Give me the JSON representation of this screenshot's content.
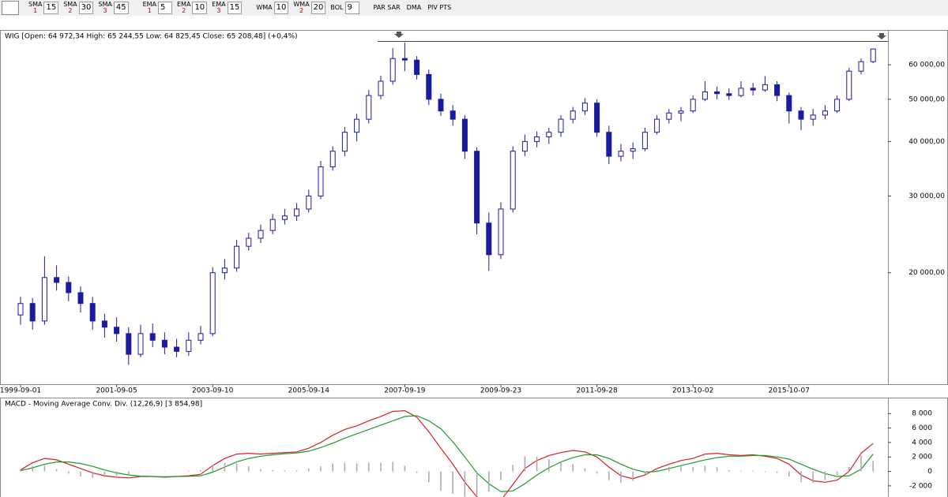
{
  "toolbar": [
    {
      "label": "SMA",
      "sub": "1",
      "value": "15"
    },
    {
      "label": "SMA",
      "sub": "2",
      "value": "30"
    },
    {
      "label": "SMA",
      "sub": "3",
      "value": "45"
    },
    {
      "label": "EMA",
      "sub": "1",
      "value": "5"
    },
    {
      "label": "EMA",
      "sub": "2",
      "value": "10"
    },
    {
      "label": "EMA",
      "sub": "3",
      "value": "15"
    },
    {
      "label": "WMA",
      "value": "10"
    },
    {
      "label": "WMA",
      "sub": "2",
      "value": "20"
    },
    {
      "label": "BOL",
      "value": "9"
    },
    {
      "label": "PAR SAR"
    },
    {
      "label": "DMA"
    },
    {
      "label": "PIV PTS"
    }
  ],
  "chart_data": [
    {
      "type": "candlestick",
      "title": "WIG [Open: 64 972,34  High: 65 244,55  Low: 64 825,45  Close: 65 208,48] (+0,4%)",
      "log_scale": true,
      "grid": false,
      "up_color": "#ffffff",
      "down_color": "#1a1aa0",
      "edge_color": "#1a1aa0",
      "categories": [
        "1999-09-01",
        null,
        null,
        null,
        null,
        null,
        null,
        null,
        "2001-09-05",
        null,
        null,
        null,
        null,
        null,
        null,
        null,
        "2003-09-10",
        null,
        null,
        null,
        null,
        null,
        null,
        null,
        "2005-09-14",
        null,
        null,
        null,
        null,
        null,
        null,
        null,
        "2007-09-19",
        null,
        null,
        null,
        null,
        null,
        null,
        null,
        "2009-09-23",
        null,
        null,
        null,
        null,
        null,
        null,
        null,
        "2011-09-28",
        null,
        null,
        null,
        null,
        null,
        null,
        null,
        "2013-10-02",
        null,
        null,
        null,
        null,
        null,
        null,
        null,
        "2015-10-07",
        null,
        null,
        null,
        null,
        null,
        null,
        null
      ],
      "open": [
        16000,
        17000,
        15500,
        19500,
        19000,
        18000,
        17000,
        15500,
        15000,
        14500,
        13000,
        14500,
        14000,
        13500,
        13200,
        14000,
        14500,
        20000,
        20500,
        23000,
        24000,
        25000,
        26500,
        27000,
        28000,
        30000,
        35000,
        38000,
        42000,
        45000,
        51000,
        55000,
        62000,
        61500,
        57000,
        50000,
        47000,
        45000,
        38000,
        26000,
        22000,
        28000,
        38000,
        40000,
        41000,
        42000,
        45000,
        47000,
        49000,
        42000,
        37000,
        38000,
        38500,
        42000,
        45000,
        46500,
        47000,
        50000,
        52000,
        51500,
        51000,
        53000,
        52500,
        54000,
        51000,
        47000,
        45000,
        46000,
        47000,
        50000,
        58000,
        61000
      ],
      "high": [
        17600,
        17500,
        21800,
        20800,
        19600,
        18600,
        17600,
        16100,
        15800,
        15000,
        15200,
        15300,
        14600,
        14100,
        14600,
        15100,
        20600,
        21500,
        23800,
        24700,
        25800,
        27300,
        28000,
        28900,
        31000,
        36100,
        39000,
        43200,
        46300,
        52500,
        56600,
        65500,
        67500,
        62800,
        58500,
        51500,
        48500,
        46000,
        38800,
        27500,
        29000,
        39000,
        41500,
        42200,
        43000,
        46000,
        48000,
        50300,
        50000,
        43500,
        39500,
        39800,
        43000,
        46000,
        47500,
        48000,
        51000,
        55000,
        53500,
        53000,
        55000,
        54500,
        56500,
        55000,
        51800,
        48000,
        47500,
        48500,
        51000,
        59000,
        62000,
        65300
      ],
      "low": [
        15200,
        14800,
        15200,
        18200,
        17200,
        16200,
        14800,
        14200,
        13900,
        12300,
        12800,
        13500,
        13000,
        12800,
        12900,
        13700,
        14300,
        19300,
        20100,
        22500,
        23400,
        24500,
        25800,
        26300,
        27500,
        29500,
        34300,
        37000,
        40000,
        44000,
        50000,
        54000,
        58000,
        55500,
        48500,
        45800,
        43500,
        36500,
        24500,
        20200,
        21500,
        27500,
        37000,
        38800,
        39500,
        41000,
        44000,
        46000,
        41000,
        35500,
        36000,
        36500,
        38000,
        41500,
        44000,
        44500,
        46500,
        49500,
        50000,
        49800,
        50500,
        51000,
        52000,
        49500,
        44000,
        42500,
        43500,
        45000,
        46500,
        49500,
        57000,
        60500
      ],
      "close": [
        17000,
        15500,
        19500,
        19000,
        18000,
        17000,
        15500,
        15000,
        14500,
        13000,
        14500,
        14000,
        13500,
        13200,
        14000,
        14500,
        20000,
        20500,
        23000,
        24000,
        25000,
        26500,
        27000,
        28000,
        30000,
        35000,
        38000,
        42000,
        45000,
        51000,
        55000,
        62000,
        61500,
        57000,
        50000,
        47000,
        45000,
        38000,
        26000,
        22000,
        28000,
        38000,
        40000,
        41000,
        42000,
        45000,
        47000,
        49000,
        42000,
        37000,
        38000,
        38500,
        42000,
        45000,
        46500,
        47000,
        50000,
        52000,
        51500,
        51000,
        53000,
        52500,
        54000,
        51000,
        47000,
        45000,
        46000,
        47000,
        50000,
        58000,
        61000,
        65208.48
      ],
      "ylim": [
        11100,
        72100
      ],
      "yticks": [
        {
          "value": 20000,
          "label": "20 000,00"
        },
        {
          "value": 30000,
          "label": "30 000,00"
        },
        {
          "value": 40000,
          "label": "40 000,00"
        },
        {
          "value": 50000,
          "label": "50 000,00"
        },
        {
          "value": 60000,
          "label": "60 000,00"
        }
      ]
    },
    {
      "type": "macd",
      "title": "MACD - Moving Average Conv. Div. (12,26,9) [3 854,98]",
      "series": [
        {
          "name": "MACD",
          "color": "#d42020",
          "kind": "line",
          "values": [
            200,
            1200,
            1800,
            1600,
            1000,
            400,
            -200,
            -600,
            -800,
            -900,
            -700,
            -700,
            -800,
            -700,
            -600,
            -400,
            800,
            1800,
            2400,
            2500,
            2400,
            2500,
            2600,
            2700,
            3200,
            4000,
            5000,
            5800,
            6300,
            7000,
            7600,
            8300,
            8400,
            7500,
            5500,
            3200,
            1000,
            -1500,
            -3500,
            -4500,
            -4000,
            -1800,
            400,
            1500,
            2200,
            2600,
            2900,
            2700,
            2000,
            600,
            -600,
            -1000,
            -500,
            400,
            1000,
            1500,
            1800,
            2400,
            2500,
            2300,
            2200,
            2300,
            2100,
            1800,
            1000,
            -500,
            -1300,
            -1500,
            -1200,
            0,
            2500,
            3854.98
          ]
        },
        {
          "name": "Signal",
          "color": "#1f9a2a",
          "kind": "line",
          "values": [
            100,
            500,
            1000,
            1300,
            1300,
            1100,
            700,
            200,
            -200,
            -500,
            -650,
            -700,
            -750,
            -700,
            -680,
            -600,
            -100,
            600,
            1300,
            1800,
            2100,
            2300,
            2450,
            2550,
            2800,
            3300,
            3900,
            4600,
            5200,
            5800,
            6400,
            7000,
            7600,
            7700,
            7000,
            5900,
            4100,
            2000,
            -200,
            -1700,
            -2800,
            -2700,
            -1700,
            -500,
            500,
            1300,
            1900,
            2300,
            2300,
            1800,
            1000,
            300,
            -100,
            0,
            400,
            800,
            1200,
            1600,
            1900,
            2100,
            2100,
            2200,
            2200,
            2000,
            1700,
            1000,
            300,
            -300,
            -700,
            -600,
            300,
            2400
          ]
        },
        {
          "name": "Histogram",
          "color": "#a8a8a8",
          "kind": "bar",
          "values": [
            100,
            700,
            800,
            300,
            -300,
            -700,
            -900,
            -800,
            -600,
            -400,
            -50,
            0,
            -50,
            0,
            80,
            200,
            900,
            1200,
            1100,
            700,
            300,
            200,
            150,
            150,
            400,
            700,
            1100,
            1200,
            1100,
            1200,
            1200,
            1300,
            800,
            -200,
            -1500,
            -2700,
            -3100,
            -3500,
            -3300,
            -2800,
            -1200,
            900,
            2100,
            2000,
            1700,
            1300,
            1000,
            400,
            -300,
            -1200,
            -1600,
            -1300,
            -400,
            400,
            600,
            700,
            600,
            800,
            600,
            200,
            100,
            100,
            -100,
            -200,
            -700,
            -1500,
            -1600,
            -1200,
            -500,
            600,
            2200,
            1454.98
          ]
        }
      ],
      "ylim": [
        -3540,
        10100
      ],
      "yticks": [
        {
          "value": -2000,
          "label": "-2 000"
        },
        0,
        {
          "value": 2000,
          "label": "2 000"
        },
        {
          "value": 4000,
          "label": "4 000"
        },
        {
          "value": 6000,
          "label": "6 000"
        },
        {
          "value": 8000,
          "label": "8 000"
        }
      ]
    }
  ]
}
